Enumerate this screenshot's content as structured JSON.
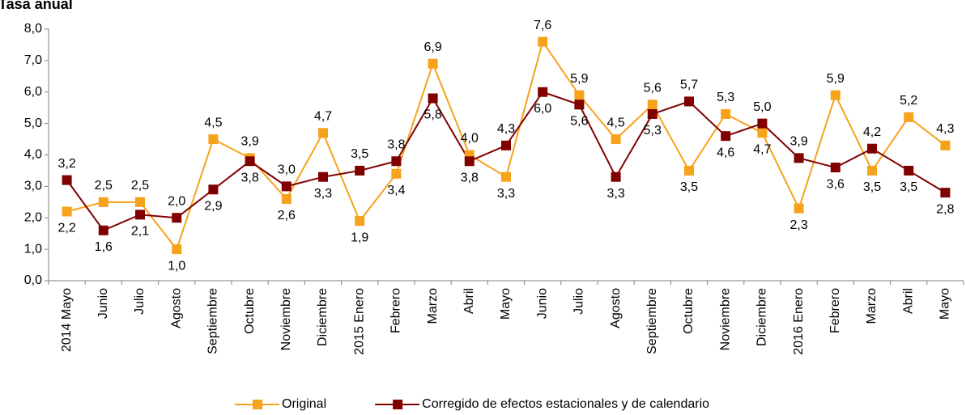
{
  "chart_data": {
    "type": "line",
    "title": "Tasa anual",
    "categories": [
      "2014 Mayo",
      "Junio",
      "Julio",
      "Agosto",
      "Septiembre",
      "Octubre",
      "Noviembre",
      "Diciembre",
      "2015 Enero",
      "Febrero",
      "Marzo",
      "Abril",
      "Mayo",
      "Junio",
      "Julio",
      "Agosto",
      "Septiembre",
      "Octubre",
      "Noviembre",
      "Diciembre",
      "2016 Enero",
      "Febrero",
      "Marzo",
      "Abril",
      "Mayo"
    ],
    "series": [
      {
        "name": "Original",
        "color": "#f7a21b",
        "values": [
          2.2,
          2.5,
          2.5,
          1.0,
          4.5,
          3.9,
          2.6,
          4.7,
          1.9,
          3.4,
          6.9,
          4.0,
          3.3,
          7.6,
          5.9,
          4.5,
          5.6,
          3.5,
          5.3,
          4.7,
          2.3,
          5.9,
          3.5,
          5.2,
          4.3
        ],
        "value_labels": [
          "2,2",
          "2,5",
          "2,5",
          "1,0",
          "4,5",
          "3,9",
          "2,6",
          "4,7",
          "1,9",
          "3,4",
          "6,9",
          "4,0",
          "3,3",
          "7,6",
          "5,9",
          "4,5",
          "5,6",
          "3,5",
          "5,3",
          "4,7",
          "2,3",
          "5,9",
          "3,5",
          "5,2",
          "4,3"
        ]
      },
      {
        "name": "Corregido de efectos estacionales y de calendario",
        "color": "#800000",
        "values": [
          3.2,
          1.6,
          2.1,
          2.0,
          2.9,
          3.8,
          3.0,
          3.3,
          3.5,
          3.8,
          5.8,
          3.8,
          4.3,
          6.0,
          5.6,
          3.3,
          5.3,
          5.7,
          4.6,
          5.0,
          3.9,
          3.6,
          4.2,
          3.5,
          2.8
        ],
        "value_labels": [
          "3,2",
          "1,6",
          "2,1",
          "2,0",
          "2,9",
          "3,8",
          "3,0",
          "3,3",
          "3,5",
          "3,8",
          "5,8",
          "3,8",
          "4,3",
          "6,0",
          "5,6",
          "3,3",
          "5,3",
          "5,7",
          "4,6",
          "5,0",
          "3,9",
          "3,6",
          "4,2",
          "3,5",
          "2,8"
        ]
      }
    ],
    "ylim": [
      0,
      8
    ],
    "yticks": [
      {
        "value": 0,
        "label": "0,0"
      },
      {
        "value": 1,
        "label": "1,0"
      },
      {
        "value": 2,
        "label": "2,0"
      },
      {
        "value": 3,
        "label": "3,0"
      },
      {
        "value": 4,
        "label": "4,0"
      },
      {
        "value": 5,
        "label": "5,0"
      },
      {
        "value": 6,
        "label": "6,0"
      },
      {
        "value": 7,
        "label": "7,0"
      },
      {
        "value": 8,
        "label": "8,0"
      }
    ],
    "grid": false,
    "legend": "bottom"
  }
}
